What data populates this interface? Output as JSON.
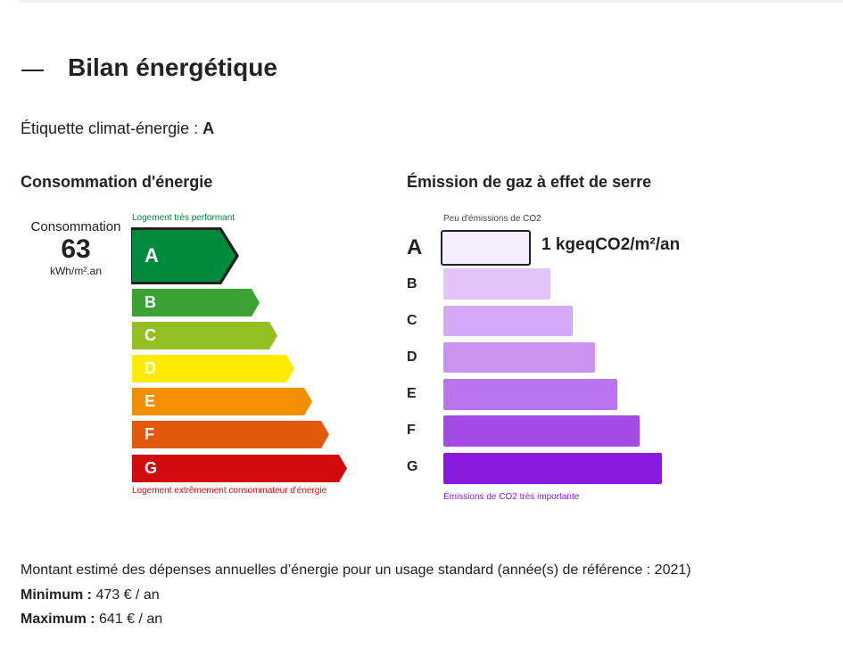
{
  "title": "Bilan énergétique",
  "climate_label": {
    "text": "Étiquette climat-énergie : ",
    "value": "A"
  },
  "energy": {
    "heading": "Consommation d'énergie",
    "consumption_label": "Consommation",
    "value": "63",
    "unit": "kWh/m².an",
    "top_note": "Logement très performant",
    "bottom_note": "Logement extrêmement consommateur d'énergie",
    "current": "A",
    "classes": [
      {
        "letter": "A",
        "color": "#028a3c"
      },
      {
        "letter": "B",
        "color": "#3aa334"
      },
      {
        "letter": "C",
        "color": "#93bf22"
      },
      {
        "letter": "D",
        "color": "#ffeb00"
      },
      {
        "letter": "E",
        "color": "#f09000"
      },
      {
        "letter": "F",
        "color": "#e15a0b"
      },
      {
        "letter": "G",
        "color": "#d10a10"
      }
    ]
  },
  "ges": {
    "heading": "Émission de gaz à effet de serre",
    "top_note": "Peu d'émissions de CO2",
    "bottom_note": "Émissions de CO2 très importante",
    "current": "A",
    "value": "1 kgeqCO2/m²/an",
    "classes": [
      {
        "letter": "A",
        "color": "#f6edfd"
      },
      {
        "letter": "B",
        "color": "#e2c4f7"
      },
      {
        "letter": "C",
        "color": "#d5a9f6"
      },
      {
        "letter": "D",
        "color": "#cb92f0"
      },
      {
        "letter": "E",
        "color": "#ba74ee"
      },
      {
        "letter": "F",
        "color": "#a34ae7"
      },
      {
        "letter": "G",
        "color": "#8a1ade"
      }
    ]
  },
  "costs": {
    "text": "Montant estimé des dépenses annuelles d’énergie pour un usage standard (année(s) de référence : 2021)",
    "min_label": "Minimum :",
    "min_value": " 473 € / an",
    "max_label": "Maximum :",
    "max_value": " 641 € / an"
  }
}
